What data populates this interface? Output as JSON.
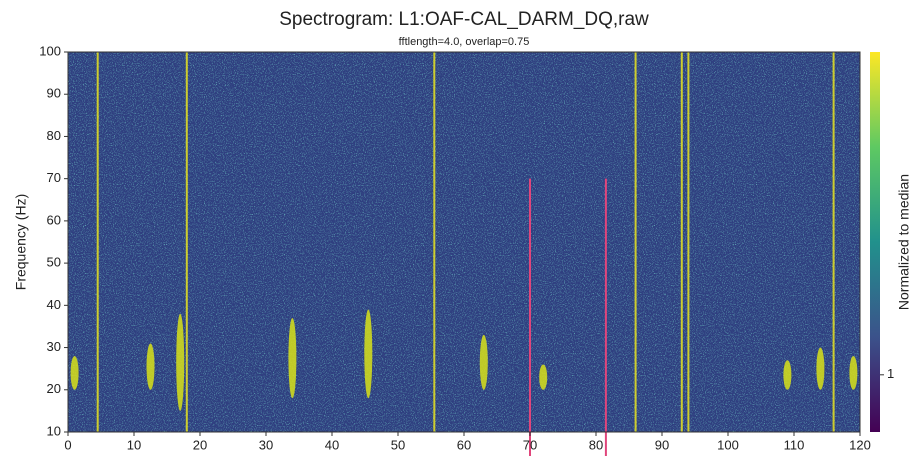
{
  "chart_data": {
    "type": "spectrogram",
    "title": "Spectrogram: L1:OAF-CAL_DARM_DQ,raw",
    "subtitle": "fftlength=4.0, overlap=0.75",
    "ylabel": "Frequency (Hz)",
    "xlim": [
      0,
      120
    ],
    "xticks": [
      0,
      10,
      20,
      30,
      40,
      50,
      60,
      70,
      80,
      90,
      100,
      110,
      120
    ],
    "ylim": [
      10,
      100
    ],
    "yticks": [
      10,
      20,
      30,
      40,
      50,
      60,
      70,
      80,
      90,
      100
    ],
    "background": "#2f3f80",
    "lines": {
      "color": "#e8e41f",
      "x": [
        4.5,
        18,
        55.5,
        86,
        93,
        94,
        116
      ]
    },
    "blobs": {
      "color": "#d8e219",
      "x": [
        1,
        12.5,
        17,
        34,
        45.5,
        63,
        72,
        109,
        114,
        119
      ],
      "fmin": [
        20,
        20,
        15,
        18,
        18,
        20,
        20,
        20,
        20,
        20
      ],
      "fmax": [
        28,
        31,
        38,
        37,
        39,
        33,
        26,
        27,
        30,
        28
      ]
    },
    "markers": {
      "color": "#e0457b",
      "x": [
        70,
        81.5
      ],
      "ymax": 70
    },
    "colorbar": {
      "label": "Normalized to median",
      "log": true,
      "lim": [
        0.5,
        50
      ],
      "ticks": [
        1
      ]
    }
  }
}
